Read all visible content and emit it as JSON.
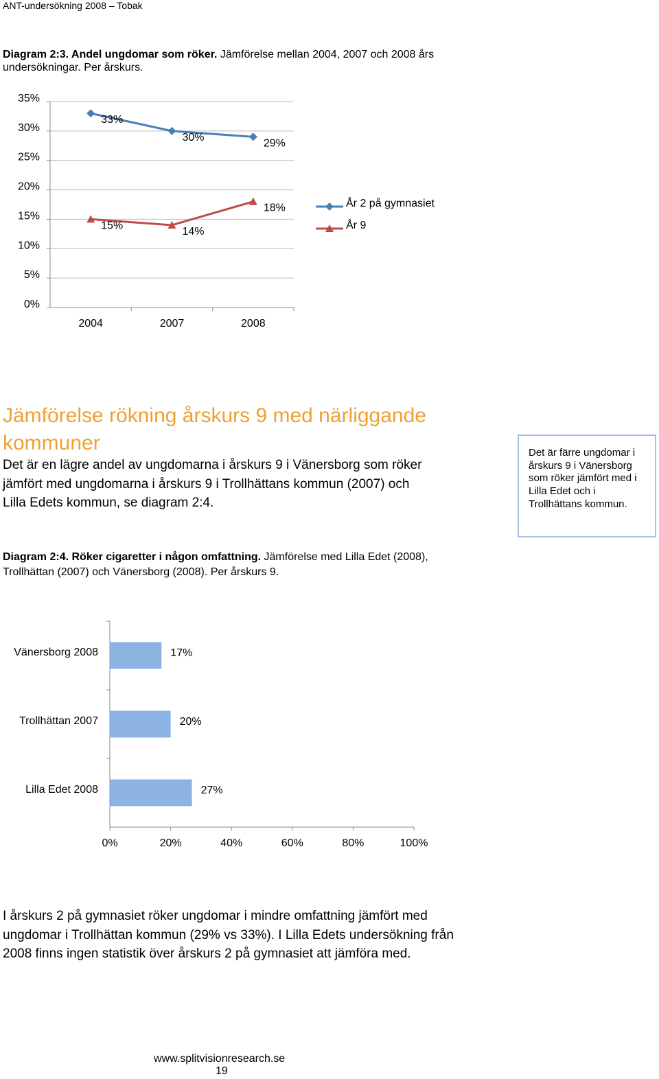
{
  "header": {
    "title": "ANT-undersökning 2008 – Tobak"
  },
  "caption1": {
    "bold": "Diagram 2:3. Andel ungdomar som röker.",
    "text": " Jämförelse mellan 2004, 2007 och 2008 års undersökningar. Per årskurs."
  },
  "chart1": {
    "chart_data": {
      "type": "line",
      "categories": [
        "2004",
        "2007",
        "2008"
      ],
      "series": [
        {
          "name": "År 2 på gymnasiet",
          "color": "#4a7ebb",
          "marker": "diamond",
          "values": [
            33,
            30,
            29
          ],
          "value_labels": [
            "33%",
            "30%",
            "29%"
          ]
        },
        {
          "name": "År 9",
          "color": "#be4b48",
          "marker": "triangle",
          "values": [
            15,
            14,
            18
          ],
          "value_labels": [
            "15%",
            "14%",
            "18%"
          ]
        }
      ],
      "ylim": [
        0,
        35
      ],
      "yticks": [
        {
          "value": 0,
          "label": "0%"
        },
        {
          "value": 5,
          "label": "5%"
        },
        {
          "value": 10,
          "label": "10%"
        },
        {
          "value": 15,
          "label": "15%"
        },
        {
          "value": 20,
          "label": "20%"
        },
        {
          "value": 25,
          "label": "25%"
        },
        {
          "value": 30,
          "label": "30%"
        },
        {
          "value": 35,
          "label": "35%"
        }
      ],
      "grid": true,
      "legend": "right"
    }
  },
  "heading": "Jämförelse rökning årskurs 9 med närliggande kommuner",
  "paragraph1": "Det är en lägre andel av ungdomarna i årskurs 9 i Vänersborg som röker jämfört med ungdomarna i årskurs 9 i Trollhättans kommun (2007) och Lilla Edets kommun, se diagram 2:4.",
  "sidebox": "Det är färre ungdomar i årskurs 9 i Vänersborg som röker jämfört med i Lilla Edet och i Trollhättans kommun.",
  "caption2": {
    "bold": "Diagram 2:4. Röker cigaretter i någon omfattning.",
    "text": " Jämförelse med Lilla Edet (2008), Trollhättan (2007) och Vänersborg (2008). Per årskurs 9."
  },
  "chart2": {
    "chart_data": {
      "type": "bar",
      "orientation": "horizontal",
      "categories": [
        "Vänersborg 2008",
        "Trollhättan 2007",
        "Lilla Edet 2008"
      ],
      "values": [
        17,
        20,
        27
      ],
      "value_labels": [
        "17%",
        "20%",
        "27%"
      ],
      "color": "#8db3e2",
      "xlim": [
        0,
        100
      ],
      "xticks": [
        {
          "value": 0,
          "label": "0%"
        },
        {
          "value": 20,
          "label": "20%"
        },
        {
          "value": 40,
          "label": "40%"
        },
        {
          "value": 60,
          "label": "60%"
        },
        {
          "value": 80,
          "label": "80%"
        },
        {
          "value": 100,
          "label": "100%"
        }
      ]
    }
  },
  "paragraph2": "I årskurs 2 på gymnasiet röker ungdomar i mindre omfattning jämfört med ungdomar i Trollhättan kommun (29% vs 33%). I Lilla Edets undersökning från 2008 finns ingen statistik över årskurs 2 på gymnasiet att jämföra med.",
  "footer": {
    "url": "www.splitvisionresearch.se",
    "page": "19"
  }
}
